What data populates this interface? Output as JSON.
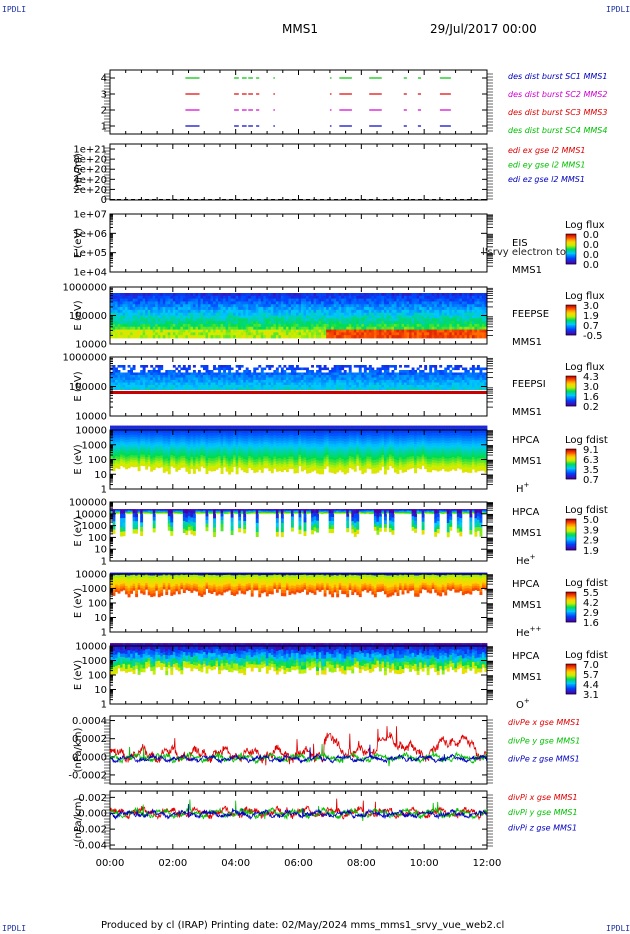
{
  "header": {
    "corner_label": "IPDLI",
    "spacecraft": "MMS1",
    "datetime": "29/Jul/2017 00:00"
  },
  "footer": {
    "text": "Produced by cl (IRAP)   Printing date: 02/May/2024   mms_mms1_srvy_vue_web2.cl"
  },
  "x_axis": {
    "ticks": [
      "00:00",
      "02:00",
      "04:00",
      "06:00",
      "08:00",
      "10:00",
      "12:00"
    ]
  },
  "colors": {
    "red": "#e00000",
    "green": "#00c000",
    "blue": "#0000c0",
    "magenta": "#d000d0",
    "frame": "#000000"
  },
  "chart_data": [
    {
      "id": "burst",
      "type": "line",
      "ylim": [
        0.5,
        4.5
      ],
      "yticks": [
        "4",
        "3",
        "2",
        "1"
      ],
      "ytick_values": [
        4,
        3,
        2,
        1
      ],
      "legend": [
        {
          "text": "des dist burst SC1 MMS1",
          "color": "#0000c0"
        },
        {
          "text": "des dist burst SC2 MMS2",
          "color": "#d000d0"
        },
        {
          "text": "des dist burst SC3 MMS3",
          "color": "#e00000"
        },
        {
          "text": "des dist burst SC4 MMS4",
          "color": "#00c000"
        }
      ],
      "series": [
        {
          "level": 4,
          "color": "#00c000",
          "intervals": [
            [
              2.4,
              2.85
            ],
            [
              3.95,
              4.1
            ],
            [
              4.2,
              4.35
            ],
            [
              4.4,
              4.55
            ],
            [
              4.65,
              4.75
            ],
            [
              5.2,
              5.25
            ],
            [
              7.0,
              7.05
            ],
            [
              7.3,
              7.7
            ],
            [
              8.25,
              8.65
            ],
            [
              9.35,
              9.45
            ],
            [
              9.8,
              9.9
            ],
            [
              10.5,
              10.85
            ]
          ]
        },
        {
          "level": 3,
          "color": "#e00000",
          "intervals": [
            [
              2.4,
              2.85
            ],
            [
              3.95,
              4.1
            ],
            [
              4.2,
              4.35
            ],
            [
              4.4,
              4.55
            ],
            [
              4.65,
              4.75
            ],
            [
              5.2,
              5.25
            ],
            [
              7.0,
              7.05
            ],
            [
              7.3,
              7.7
            ],
            [
              8.25,
              8.65
            ],
            [
              9.35,
              9.45
            ],
            [
              9.8,
              9.9
            ],
            [
              10.5,
              10.85
            ]
          ]
        },
        {
          "level": 2,
          "color": "#d000d0",
          "intervals": [
            [
              2.4,
              2.85
            ],
            [
              3.95,
              4.1
            ],
            [
              4.2,
              4.35
            ],
            [
              4.4,
              4.55
            ],
            [
              4.65,
              4.75
            ],
            [
              5.2,
              5.25
            ],
            [
              7.0,
              7.05
            ],
            [
              7.3,
              7.7
            ],
            [
              8.25,
              8.65
            ],
            [
              9.35,
              9.45
            ],
            [
              9.8,
              9.9
            ],
            [
              10.5,
              10.85
            ]
          ]
        },
        {
          "level": 1,
          "color": "#0000c0",
          "intervals": [
            [
              2.4,
              2.85
            ],
            [
              3.95,
              4.1
            ],
            [
              4.2,
              4.35
            ],
            [
              4.4,
              4.55
            ],
            [
              4.65,
              4.75
            ],
            [
              5.2,
              5.25
            ],
            [
              7.0,
              7.05
            ],
            [
              7.3,
              7.7
            ],
            [
              8.25,
              8.65
            ],
            [
              9.35,
              9.45
            ],
            [
              9.8,
              9.9
            ],
            [
              10.5,
              10.85
            ]
          ]
        }
      ]
    },
    {
      "id": "edi",
      "type": "line",
      "ylabel": "(mV/m)",
      "yticks": [
        "1e+21",
        "8e+20",
        "6e+20",
        "4e+20",
        "2e+20",
        "0"
      ],
      "ytick_values": [
        1e+21,
        8e+20,
        6e+20,
        4e+20,
        2e+20,
        0
      ],
      "ylim": [
        -1e+19,
        1.1e+21
      ],
      "legend": [
        {
          "text": "edi ex gse l2 MMS1",
          "color": "#e00000"
        },
        {
          "text": "edi ey gse l2 MMS1",
          "color": "#00c000"
        },
        {
          "text": "edi ez gse l2 MMS1",
          "color": "#0000c0"
        }
      ]
    },
    {
      "id": "eis",
      "type": "heatmap",
      "ylabel": "E (eV)",
      "yticks": [
        "1e+07",
        "1e+06",
        "1e+05",
        "1e+04"
      ],
      "ytick_exponents": [
        7,
        6,
        5,
        4
      ],
      "label_lines": [
        "EIS",
        "MMS1"
      ],
      "overlay_text": "l'srvy electron tof",
      "colorbar": {
        "title": "Log flux",
        "ticks": [
          "0.0",
          "0.0",
          "0.0",
          "0.0"
        ]
      }
    },
    {
      "id": "feepse",
      "type": "heatmap",
      "ylabel": "E (eV)",
      "yticks": [
        "1000000",
        "100000",
        "10000"
      ],
      "ytick_exponents": [
        6,
        5,
        4
      ],
      "label_lines": [
        "FEEPSE",
        "MMS1"
      ],
      "colorbar": {
        "title": "Log flux",
        "ticks": [
          "3.0",
          "1.9",
          "0.7",
          "-0.5"
        ]
      }
    },
    {
      "id": "feepsi",
      "type": "heatmap",
      "ylabel": "E (eV)",
      "yticks": [
        "1000000",
        "100000",
        "10000"
      ],
      "ytick_exponents": [
        6,
        5,
        4
      ],
      "label_lines": [
        "FEEPSI",
        "MMS1"
      ],
      "colorbar": {
        "title": "Log flux",
        "ticks": [
          "4.3",
          "3.0",
          "1.6",
          "0.2"
        ]
      }
    },
    {
      "id": "hpca_h",
      "type": "heatmap",
      "ylabel": "E (eV)",
      "yticks": [
        "10000",
        "1000",
        "100",
        "10",
        "1"
      ],
      "ytick_exponents": [
        4,
        3,
        2,
        1,
        0
      ],
      "label_lines": [
        "HPCA",
        "MMS1"
      ],
      "species": "H",
      "species_charge": "+",
      "colorbar": {
        "title": "Log fdist",
        "ticks": [
          "9.1",
          "6.3",
          "3.5",
          "0.7"
        ]
      }
    },
    {
      "id": "hpca_he",
      "type": "heatmap",
      "ylabel": "E (eV)",
      "yticks": [
        "100000",
        "10000",
        "1000",
        "100",
        "10",
        "1"
      ],
      "ytick_exponents": [
        5,
        4,
        3,
        2,
        1,
        0
      ],
      "label_lines": [
        "HPCA",
        "MMS1"
      ],
      "species": "He",
      "species_charge": "+",
      "colorbar": {
        "title": "Log fdist",
        "ticks": [
          "5.0",
          "3.9",
          "2.9",
          "1.9"
        ]
      }
    },
    {
      "id": "hpca_he2",
      "type": "heatmap",
      "ylabel": "E (eV)",
      "yticks": [
        "10000",
        "1000",
        "100",
        "10",
        "1"
      ],
      "ytick_exponents": [
        4,
        3,
        2,
        1,
        0
      ],
      "label_lines": [
        "HPCA",
        "MMS1"
      ],
      "species": "He",
      "species_charge": "++",
      "colorbar": {
        "title": "Log fdist",
        "ticks": [
          "5.5",
          "4.2",
          "2.9",
          "1.6"
        ]
      }
    },
    {
      "id": "hpca_o",
      "type": "heatmap",
      "ylabel": "E (eV)",
      "yticks": [
        "10000",
        "1000",
        "100",
        "10",
        "1"
      ],
      "ytick_exponents": [
        4,
        3,
        2,
        1,
        0
      ],
      "label_lines": [
        "HPCA",
        "MMS1"
      ],
      "species": "O",
      "species_charge": "+",
      "colorbar": {
        "title": "Log fdist",
        "ticks": [
          "7.0",
          "5.7",
          "4.4",
          "3.1"
        ]
      }
    },
    {
      "id": "divpe",
      "type": "line",
      "ylabel": "(nPa/km)",
      "yticks": [
        "0.0004",
        "0.0002",
        "0.0000",
        "-0.0002"
      ],
      "ytick_values": [
        0.0004,
        0.0002,
        0.0,
        -0.0002
      ],
      "ylim": [
        -0.0003,
        0.00045
      ],
      "legend": [
        {
          "text": "divPe x gse MMS1",
          "color": "#e00000"
        },
        {
          "text": "divPe y gse MMS1",
          "color": "#00c000"
        },
        {
          "text": "divPe z gse MMS1",
          "color": "#0000c0"
        }
      ]
    },
    {
      "id": "divpi",
      "type": "line",
      "ylabel": "(nPa/km)",
      "yticks": [
        "0.002",
        "0.000",
        "-0.002",
        "-0.004"
      ],
      "ytick_values": [
        0.002,
        0.0,
        -0.002,
        -0.004
      ],
      "ylim": [
        -0.0045,
        0.0028
      ],
      "legend": [
        {
          "text": "divPi x gse MMS1",
          "color": "#e00000"
        },
        {
          "text": "divPi y gse MMS1",
          "color": "#00c000"
        },
        {
          "text": "divPi z gse MMS1",
          "color": "#0000c0"
        }
      ]
    }
  ]
}
